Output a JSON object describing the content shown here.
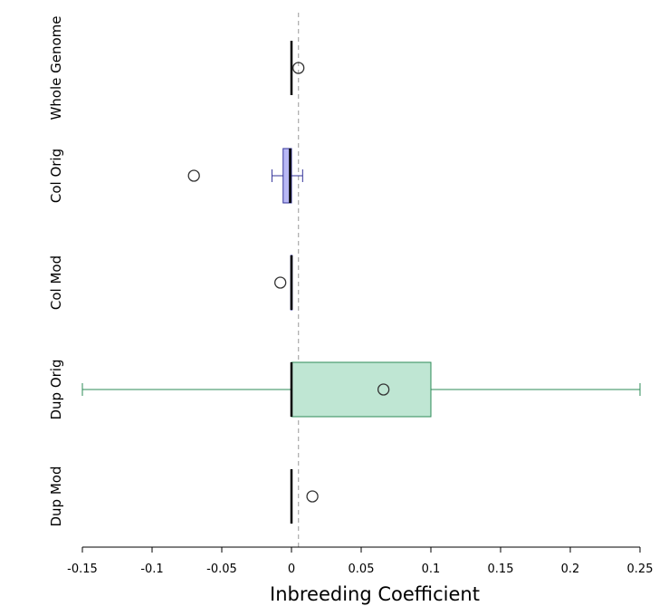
{
  "chart_data": {
    "type": "box",
    "orientation": "horizontal",
    "xlabel": "Inbreeding Coefficient",
    "xlim": [
      -0.15,
      0.25
    ],
    "xticks": [
      -0.15,
      -0.1,
      -0.05,
      0,
      0.05,
      0.1,
      0.15,
      0.2,
      0.25
    ],
    "xtick_labels": [
      "-0.15",
      "-0.1",
      "-0.05",
      "0",
      "0.05",
      "0.1",
      "0.15",
      "0.2",
      "0.25"
    ],
    "reference_line": {
      "x": 0.005,
      "style": "dashed",
      "color": "#aaaaaa"
    },
    "grid": false,
    "categories": [
      "Whole Genome",
      "Col Orig",
      "Col Mod",
      "Dup Orig",
      "Dup Mod"
    ],
    "series": [
      {
        "category": "Whole Genome",
        "whisker_low": 0,
        "q1": 0,
        "median": 0,
        "q3": 0,
        "whisker_high": 0,
        "mean": 0.005,
        "color": "#000000",
        "fill": "#000000"
      },
      {
        "category": "Col Orig",
        "whisker_low": -0.014,
        "q1": -0.006,
        "median": -0.001,
        "q3": 0,
        "whisker_high": 0.008,
        "mean": -0.07,
        "color": "#33339a",
        "fill": "#b8b8f5"
      },
      {
        "category": "Col Mod",
        "whisker_low": -0.0005,
        "q1": -0.0005,
        "median": 0,
        "q3": 0.0005,
        "whisker_high": 0.0005,
        "mean": -0.008,
        "color": "#1a1a80",
        "fill": "#1a1a80"
      },
      {
        "category": "Dup Orig",
        "whisker_low": -0.15,
        "q1": 0,
        "median": 0,
        "q3": 0.1,
        "whisker_high": 0.25,
        "mean": 0.066,
        "color": "#2e8b57",
        "fill": "#bfe6d3"
      },
      {
        "category": "Dup Mod",
        "whisker_low": 0,
        "q1": 0,
        "median": 0,
        "q3": 0,
        "whisker_high": 0,
        "mean": 0.015,
        "color": "#2e8b57",
        "fill": "#2e8b57"
      }
    ]
  }
}
